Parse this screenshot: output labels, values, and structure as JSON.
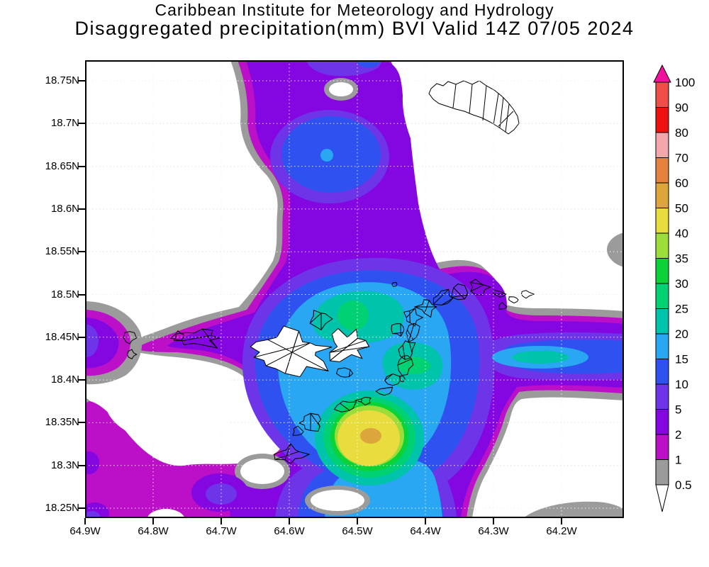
{
  "header": {
    "line1": "Caribbean Institute for Meteorology and Hydrology",
    "line2": "Disaggregated precipitation(mm) BVI Valid 14Z 07/05 2024"
  },
  "axes": {
    "lat_labels": [
      "18.75N",
      "18.7N",
      "18.65N",
      "18.6N",
      "18.55N",
      "18.5N",
      "18.45N",
      "18.4N",
      "18.35N",
      "18.3N",
      "18.25N"
    ],
    "lon_labels": [
      "64.9W",
      "64.8W",
      "64.7W",
      "64.6W",
      "64.5W",
      "64.4W",
      "64.3W",
      "64.2W"
    ]
  },
  "colorbar": {
    "tick_labels": [
      "100",
      "90",
      "80",
      "70",
      "60",
      "50",
      "40",
      "35",
      "30",
      "25",
      "20",
      "15",
      "10",
      "5",
      "2",
      "1",
      "0.5"
    ],
    "segment_colors_top_to_bottom": [
      "#f04f48",
      "#ee1112",
      "#f2a7ad",
      "#e5823d",
      "#dca63a",
      "#e8dc3e",
      "#9cdd3a",
      "#0bd337",
      "#00d173",
      "#00c3ab",
      "#29a7f2",
      "#2e51f0",
      "#6e35e8",
      "#8406e0",
      "#bb0fc8",
      "#9b9b9b"
    ],
    "over_arrow_color": "#f2119c",
    "under_triangle_color": "#ffffff"
  },
  "chart_data": {
    "type": "heatmap",
    "subtype": "filled contour precipitation analysis on lat-lon map",
    "title": "Caribbean Institute for Meteorology and Hydrology",
    "subtitle": "Disaggregated precipitation(mm) BVI Valid 14Z 07/05 2024",
    "variable": "Disaggregated precipitation",
    "unit": "mm",
    "region": "British Virgin Islands (BVI) / northern USVI area",
    "valid_time": "14Z 07/05 2024",
    "lon_axis_ticks": [
      "64.9W",
      "64.8W",
      "64.7W",
      "64.6W",
      "64.5W",
      "64.4W",
      "64.3W",
      "64.2W"
    ],
    "lat_axis_ticks": [
      "18.25N",
      "18.3N",
      "18.35N",
      "18.4N",
      "18.45N",
      "18.5N",
      "18.55N",
      "18.6N",
      "18.65N",
      "18.7N",
      "18.75N"
    ],
    "lon_range_west_deg": [
      64.9,
      64.11
    ],
    "lat_range_north_deg": [
      18.24,
      18.775
    ],
    "grid": "dotted graticule every 0.05 deg lat and 0.1 deg lon",
    "legend_position": "right vertical colorbar with over-arrow and under-triangle",
    "contour_levels_mm": [
      0.5,
      1,
      2,
      5,
      10,
      15,
      20,
      25,
      30,
      35,
      40,
      50,
      60,
      70,
      80,
      90,
      100
    ],
    "level_colors": {
      "0.5": "#9b9b9b",
      "1": "#bb0fc8",
      "2": "#8406e0",
      "5": "#6e35e8",
      "10": "#2e51f0",
      "15": "#29a7f2",
      "20": "#00c3ab",
      "25": "#00d173",
      "30": "#0bd337",
      "35": "#9cdd3a",
      "40": "#e8dc3e",
      "50": "#dda63c",
      "60": "#e5823d",
      "70": "#f2a7ad",
      "80": "#ee1112",
      "90": "#f04f48",
      "100": "#f2119c"
    },
    "features": [
      {
        "name": "primary maximum",
        "value_mm": "50-60",
        "approx_location": "64.50W 18.33N (south of Tortola)"
      },
      {
        "name": "secondary maximum east arm",
        "value_mm": "20-25",
        "approx_location": "64.26W 18.41N"
      },
      {
        "name": "northern cell",
        "value_mm": "10-15",
        "approx_location": "64.56W 18.66N"
      },
      {
        "name": "western lobe",
        "value_mm": "5-10",
        "approx_location": "64.9W 18.46N at map edge"
      },
      {
        "name": "dry areas",
        "value_mm": "<0.5 (white)",
        "approx_location": "northwest quadrant, area around Anegada, southeast corner"
      }
    ],
    "map_features": [
      "Anegada island outline (top right)",
      "Tortola / Virgin Gorda chain outlines (center)",
      "St. Thomas & St. John island outlines (center left)"
    ]
  }
}
